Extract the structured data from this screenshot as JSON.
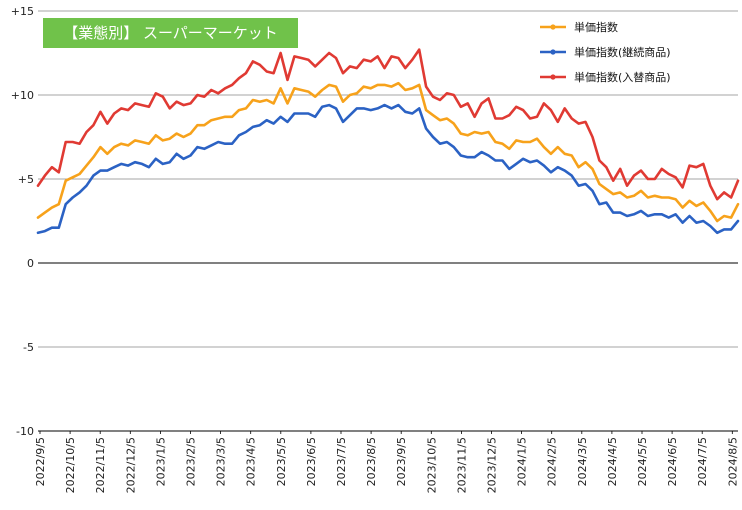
{
  "title": "【業態別】 スーパーマーケット",
  "colors": {
    "title_bg": "#70c24a",
    "orange": "#f7a21b",
    "blue": "#2b62c4",
    "red": "#e03a33",
    "grid": "#888888",
    "axis": "#000000"
  },
  "chart_data": {
    "type": "line",
    "title": "【業態別】 スーパーマーケット",
    "xlabel": "",
    "ylabel": "",
    "ylim": [
      -10,
      15
    ],
    "yticks": [
      -10,
      -5,
      0,
      5,
      10,
      15
    ],
    "ytick_labels": [
      "-10",
      "-5",
      "0",
      "+5",
      "+10",
      "+15"
    ],
    "grid": "horizontal",
    "legend_position": "top-right",
    "x_tick_labels": [
      "2022/9/5",
      "2022/10/5",
      "2022/11/5",
      "2022/12/5",
      "2023/1/5",
      "2023/2/5",
      "2023/3/5",
      "2023/4/5",
      "2023/5/5",
      "2023/6/5",
      "2023/7/5",
      "2023/8/5",
      "2023/9/5",
      "2023/10/5",
      "2023/11/5",
      "2023/12/5",
      "2024/1/5",
      "2024/2/5",
      "2024/3/5",
      "2024/4/5",
      "2024/5/5",
      "2024/6/5",
      "2024/7/5",
      "2024/8/5"
    ],
    "series": [
      {
        "name": "単価指数",
        "color": "#f7a21b",
        "values": [
          2.7,
          3.0,
          3.3,
          3.5,
          4.9,
          5.1,
          5.3,
          5.8,
          6.3,
          6.9,
          6.5,
          6.9,
          7.1,
          7.0,
          7.3,
          7.2,
          7.1,
          7.6,
          7.3,
          7.4,
          7.7,
          7.5,
          7.7,
          8.2,
          8.2,
          8.5,
          8.6,
          8.7,
          8.7,
          9.1,
          9.2,
          9.7,
          9.6,
          9.7,
          9.5,
          10.4,
          9.5,
          10.4,
          10.3,
          10.2,
          9.9,
          10.3,
          10.6,
          10.5,
          9.6,
          10.0,
          10.1,
          10.5,
          10.4,
          10.6,
          10.6,
          10.5,
          10.7,
          10.3,
          10.4,
          10.6,
          9.1,
          8.8,
          8.5,
          8.6,
          8.3,
          7.7,
          7.6,
          7.8,
          7.7,
          7.8,
          7.2,
          7.1,
          6.8,
          7.3,
          7.2,
          7.2,
          7.4,
          6.9,
          6.5,
          6.9,
          6.5,
          6.4,
          5.7,
          6.0,
          5.6,
          4.7,
          4.4,
          4.1,
          4.2,
          3.9,
          4.0,
          4.3,
          3.9,
          4.0,
          3.9,
          3.9,
          3.8,
          3.3,
          3.7,
          3.4,
          3.6,
          3.1,
          2.5,
          2.8,
          2.7,
          3.5
        ]
      },
      {
        "name": "単価指数(継続商品)",
        "color": "#2b62c4",
        "values": [
          1.8,
          1.9,
          2.1,
          2.1,
          3.5,
          3.9,
          4.2,
          4.6,
          5.2,
          5.5,
          5.5,
          5.7,
          5.9,
          5.8,
          6.0,
          5.9,
          5.7,
          6.2,
          5.9,
          6.0,
          6.5,
          6.2,
          6.4,
          6.9,
          6.8,
          7.0,
          7.2,
          7.1,
          7.1,
          7.6,
          7.8,
          8.1,
          8.2,
          8.5,
          8.3,
          8.7,
          8.4,
          8.9,
          8.9,
          8.9,
          8.7,
          9.3,
          9.4,
          9.2,
          8.4,
          8.8,
          9.2,
          9.2,
          9.1,
          9.2,
          9.4,
          9.2,
          9.4,
          9.0,
          8.9,
          9.2,
          8.0,
          7.5,
          7.1,
          7.2,
          6.9,
          6.4,
          6.3,
          6.3,
          6.6,
          6.4,
          6.1,
          6.1,
          5.6,
          5.9,
          6.2,
          6.0,
          6.1,
          5.8,
          5.4,
          5.7,
          5.5,
          5.2,
          4.6,
          4.7,
          4.3,
          3.5,
          3.6,
          3.0,
          3.0,
          2.8,
          2.9,
          3.1,
          2.8,
          2.9,
          2.9,
          2.7,
          2.9,
          2.4,
          2.8,
          2.4,
          2.5,
          2.2,
          1.8,
          2.0,
          2.0,
          2.5
        ]
      },
      {
        "name": "単価指数(入替商品)",
        "color": "#e03a33",
        "values": [
          4.6,
          5.2,
          5.7,
          5.4,
          7.2,
          7.2,
          7.1,
          7.8,
          8.2,
          9.0,
          8.3,
          8.9,
          9.2,
          9.1,
          9.5,
          9.4,
          9.3,
          10.1,
          9.9,
          9.2,
          9.6,
          9.4,
          9.5,
          10.0,
          9.9,
          10.3,
          10.1,
          10.4,
          10.6,
          11.0,
          11.3,
          12.0,
          11.8,
          11.4,
          11.3,
          12.5,
          10.9,
          12.3,
          12.2,
          12.1,
          11.7,
          12.1,
          12.5,
          12.2,
          11.3,
          11.7,
          11.6,
          12.1,
          12.0,
          12.3,
          11.6,
          12.3,
          12.2,
          11.6,
          12.1,
          12.7,
          10.5,
          9.9,
          9.7,
          10.1,
          10.0,
          9.3,
          9.5,
          8.7,
          9.5,
          9.8,
          8.6,
          8.6,
          8.8,
          9.3,
          9.1,
          8.6,
          8.7,
          9.5,
          9.1,
          8.4,
          9.2,
          8.6,
          8.3,
          8.4,
          7.5,
          6.1,
          5.7,
          4.9,
          5.6,
          4.6,
          5.2,
          5.5,
          5.0,
          5.0,
          5.6,
          5.3,
          5.1,
          4.5,
          5.8,
          5.7,
          5.9,
          4.6,
          3.8,
          4.2,
          3.9,
          4.9
        ]
      }
    ]
  }
}
